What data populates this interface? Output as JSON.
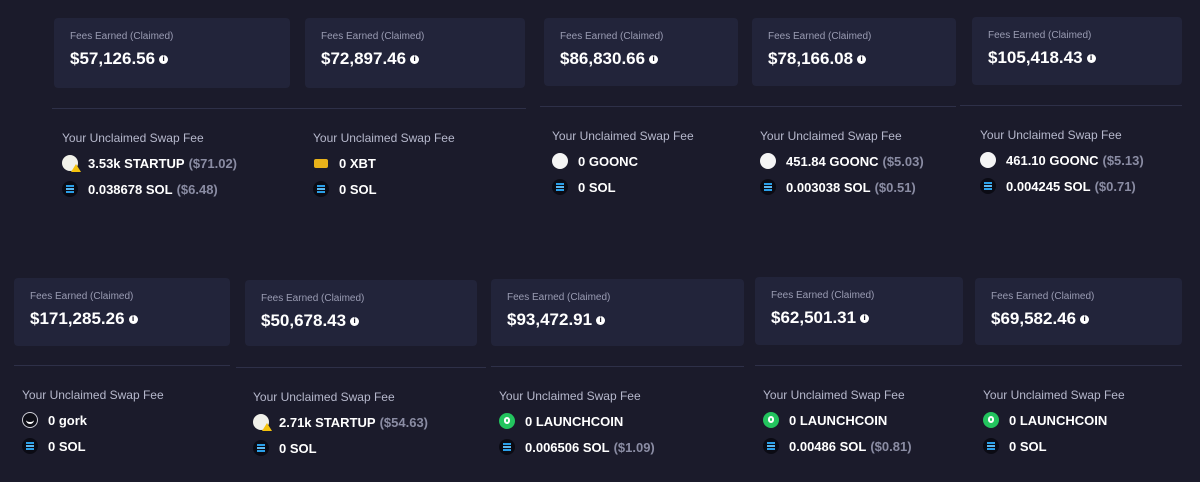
{
  "fee_label": "Fees Earned (Claimed)",
  "unclaimed_title": "Your Unclaimed Swap Fee",
  "info_glyph": "i",
  "row1": [
    {
      "fees": "$57,126.56",
      "t1": {
        "icon": "startup",
        "amount": "3.53k STARTUP",
        "usd": "($71.02)"
      },
      "t2": {
        "icon": "sol",
        "amount": "0.038678 SOL",
        "usd": "($6.48)"
      }
    },
    {
      "fees": "$72,897.46",
      "t1": {
        "icon": "xbt",
        "amount": "0 XBT",
        "usd": ""
      },
      "t2": {
        "icon": "sol",
        "amount": "0 SOL",
        "usd": ""
      }
    },
    {
      "fees": "$86,830.66",
      "t1": {
        "icon": "white",
        "amount": "0 GOONC",
        "usd": ""
      },
      "t2": {
        "icon": "sol",
        "amount": "0 SOL",
        "usd": ""
      }
    },
    {
      "fees": "$78,166.08",
      "t1": {
        "icon": "white",
        "amount": "451.84 GOONC",
        "usd": "($5.03)"
      },
      "t2": {
        "icon": "sol",
        "amount": "0.003038 SOL",
        "usd": "($0.51)"
      }
    },
    {
      "fees": "$105,418.43",
      "t1": {
        "icon": "white",
        "amount": "461.10 GOONC",
        "usd": "($5.13)"
      },
      "t2": {
        "icon": "sol",
        "amount": "0.004245 SOL",
        "usd": "($0.71)"
      }
    }
  ],
  "row2": [
    {
      "fees": "$171,285.26",
      "t1": {
        "icon": "gork",
        "amount": "0 gork",
        "usd": ""
      },
      "t2": {
        "icon": "sol",
        "amount": "0 SOL",
        "usd": ""
      }
    },
    {
      "fees": "$50,678.43",
      "t1": {
        "icon": "startup",
        "amount": "2.71k STARTUP",
        "usd": "($54.63)"
      },
      "t2": {
        "icon": "sol",
        "amount": "0 SOL",
        "usd": ""
      }
    },
    {
      "fees": "$93,472.91",
      "t1": {
        "icon": "launch",
        "amount": "0 LAUNCHCOIN",
        "usd": ""
      },
      "t2": {
        "icon": "sol",
        "amount": "0.006506 SOL",
        "usd": "($1.09)"
      }
    },
    {
      "fees": "$62,501.31",
      "t1": {
        "icon": "launch",
        "amount": "0 LAUNCHCOIN",
        "usd": ""
      },
      "t2": {
        "icon": "sol",
        "amount": "0.00486 SOL",
        "usd": "($0.81)"
      }
    },
    {
      "fees": "$69,582.46",
      "t1": {
        "icon": "launch",
        "amount": "0 LAUNCHCOIN",
        "usd": ""
      },
      "t2": {
        "icon": "sol",
        "amount": "0 SOL",
        "usd": ""
      }
    }
  ]
}
